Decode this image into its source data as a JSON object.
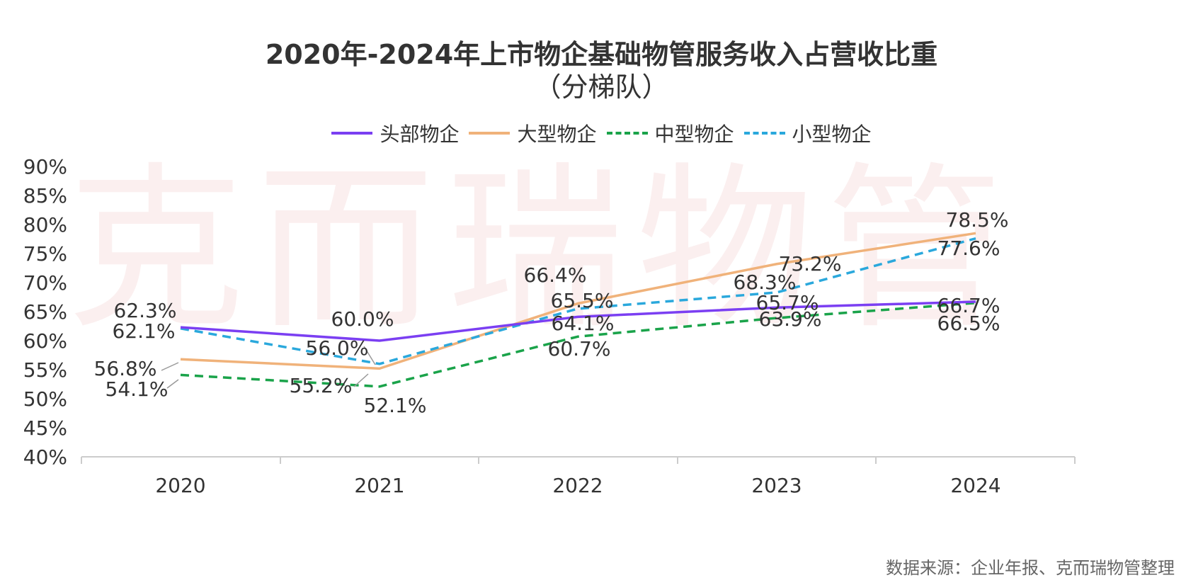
{
  "title": "2020年-2024年上市物企基础物管服务收入占营收比重",
  "subtitle": "（分梯队）",
  "watermark": "克而瑞物管",
  "source": "数据来源：企业年报、克而瑞物管整理",
  "colors": {
    "head": "#7b3ff2",
    "large": "#f0b27a",
    "mid": "#1aa34a",
    "small": "#2aa8dc",
    "axis": "#cccccc",
    "text": "#333333"
  },
  "chart_data": {
    "type": "line",
    "title": "2020年-2024年上市物企基础物管服务收入占营收比重",
    "subtitle": "（分梯队）",
    "x": [
      "2020",
      "2021",
      "2022",
      "2023",
      "2024"
    ],
    "ylim": [
      40,
      90
    ],
    "yticks": [
      40,
      45,
      50,
      55,
      60,
      65,
      70,
      75,
      80,
      85,
      90
    ],
    "ytick_labels": [
      "40%",
      "45%",
      "50%",
      "55%",
      "60%",
      "65%",
      "70%",
      "75%",
      "80%",
      "85%",
      "90%"
    ],
    "legend_position": "top",
    "series": [
      {
        "name": "头部物企",
        "style": "solid",
        "values": [
          62.3,
          60.0,
          64.1,
          65.7,
          66.7
        ],
        "labels": [
          "62.3%",
          "60.0%",
          "64.1%",
          "65.7%",
          "66.7%"
        ]
      },
      {
        "name": "大型物企",
        "style": "solid",
        "values": [
          56.8,
          55.2,
          66.4,
          73.2,
          78.5
        ],
        "labels": [
          "56.8%",
          "55.2%",
          "66.4%",
          "73.2%",
          "78.5%"
        ]
      },
      {
        "name": "中型物企",
        "style": "dashed",
        "values": [
          54.1,
          52.1,
          60.7,
          63.9,
          66.5
        ],
        "labels": [
          "54.1%",
          "52.1%",
          "60.7%",
          "63.9%",
          "66.5%"
        ]
      },
      {
        "name": "小型物企",
        "style": "dashed",
        "values": [
          62.1,
          56.0,
          65.5,
          68.3,
          77.6
        ],
        "labels": [
          "62.1%",
          "56.0%",
          "65.5%",
          "68.3%",
          "77.6%"
        ]
      }
    ]
  }
}
